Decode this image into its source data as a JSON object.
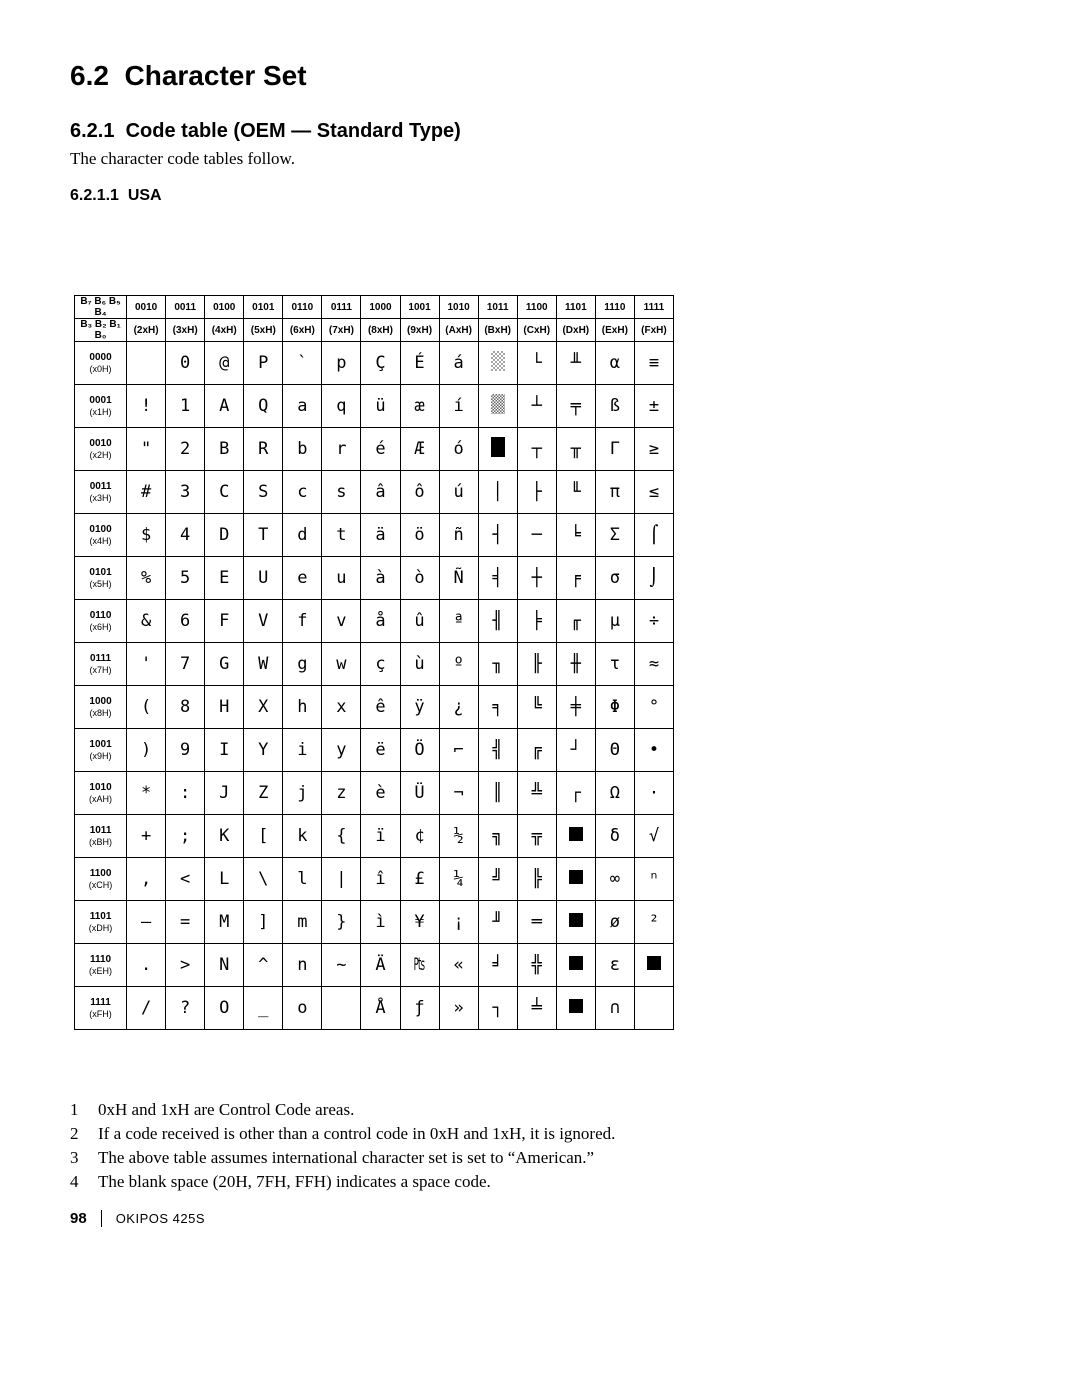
{
  "section_number": "6.2",
  "section_title": "Character Set",
  "subsection_number": "6.2.1",
  "subsection_title": "Code table (OEM — Standard Type)",
  "intro_text": "The character code tables follow.",
  "subsub_number": "6.2.1.1",
  "subsub_title": "USA",
  "table": {
    "top_left_1": "B₇ B₆ B₅ B₄",
    "top_left_2": "B₃ B₂ B₁ B₀",
    "col_bits": [
      "0010",
      "0011",
      "0100",
      "0101",
      "0110",
      "0111",
      "1000",
      "1001",
      "1010",
      "1011",
      "1100",
      "1101",
      "1110",
      "1111"
    ],
    "col_hex": [
      "(2xH)",
      "(3xH)",
      "(4xH)",
      "(5xH)",
      "(6xH)",
      "(7xH)",
      "(8xH)",
      "(9xH)",
      "(AxH)",
      "(BxH)",
      "(CxH)",
      "(DxH)",
      "(ExH)",
      "(FxH)"
    ],
    "row_bits": [
      "0000",
      "0001",
      "0010",
      "0011",
      "0100",
      "0101",
      "0110",
      "0111",
      "1000",
      "1001",
      "1010",
      "1011",
      "1100",
      "1101",
      "1110",
      "1111"
    ],
    "row_hex": [
      "(x0H)",
      "(x1H)",
      "(x2H)",
      "(x3H)",
      "(x4H)",
      "(x5H)",
      "(x6H)",
      "(x7H)",
      "(x8H)",
      "(x9H)",
      "(xAH)",
      "(xBH)",
      "(xCH)",
      "(xDH)",
      "(xEH)",
      "(xFH)"
    ],
    "cells": [
      [
        "",
        "0",
        "@",
        "P",
        "`",
        "p",
        "Ç",
        "É",
        "á",
        "░",
        "└",
        "╨",
        "α",
        "≡"
      ],
      [
        "!",
        "1",
        "A",
        "Q",
        "a",
        "q",
        "ü",
        "æ",
        "í",
        "▒",
        "┴",
        "╤",
        "ß",
        "±"
      ],
      [
        "\"",
        "2",
        "B",
        "R",
        "b",
        "r",
        "é",
        "Æ",
        "ó",
        "▓",
        "┬",
        "╥",
        "Γ",
        "≥"
      ],
      [
        "#",
        "3",
        "C",
        "S",
        "c",
        "s",
        "â",
        "ô",
        "ú",
        "│",
        "├",
        "╙",
        "π",
        "≤"
      ],
      [
        "$",
        "4",
        "D",
        "T",
        "d",
        "t",
        "ä",
        "ö",
        "ñ",
        "┤",
        "─",
        "╘",
        "Σ",
        "⌠"
      ],
      [
        "%",
        "5",
        "E",
        "U",
        "e",
        "u",
        "à",
        "ò",
        "Ñ",
        "╡",
        "┼",
        "╒",
        "σ",
        "⌡"
      ],
      [
        "&",
        "6",
        "F",
        "V",
        "f",
        "v",
        "å",
        "û",
        "ª",
        "╢",
        "╞",
        "╓",
        "μ",
        "÷"
      ],
      [
        "'",
        "7",
        "G",
        "W",
        "g",
        "w",
        "ç",
        "ù",
        "º",
        "╖",
        "╟",
        "╫",
        "τ",
        "≈"
      ],
      [
        "(",
        "8",
        "H",
        "X",
        "h",
        "x",
        "ê",
        "ÿ",
        "¿",
        "╕",
        "╚",
        "╪",
        "Φ",
        "°"
      ],
      [
        ")",
        "9",
        "I",
        "Y",
        "i",
        "y",
        "ë",
        "Ö",
        "⌐",
        "╣",
        "╔",
        "┘",
        "Θ",
        "•"
      ],
      [
        "*",
        ":",
        "J",
        "Z",
        "j",
        "z",
        "è",
        "Ü",
        "¬",
        "║",
        "╩",
        "┌",
        "Ω",
        "·"
      ],
      [
        "+",
        ";",
        "K",
        "[",
        "k",
        "{",
        "ï",
        "¢",
        "½",
        "╗",
        "╦",
        "█",
        "δ",
        "√"
      ],
      [
        ",",
        "<",
        "L",
        "\\",
        "l",
        "|",
        "î",
        "£",
        "¼",
        "╝",
        "╠",
        "▄",
        "∞",
        "ⁿ"
      ],
      [
        "–",
        "=",
        "M",
        "]",
        "m",
        "}",
        "ì",
        "¥",
        "¡",
        "╜",
        "═",
        "▌",
        "ø",
        "²"
      ],
      [
        ".",
        ">",
        "N",
        "^",
        "n",
        "~",
        "Ä",
        "₧",
        "«",
        "╛",
        "╬",
        "▐",
        "ε",
        "■"
      ],
      [
        "/",
        "?",
        "O",
        "_",
        "o",
        "",
        "Å",
        "ƒ",
        "»",
        "┐",
        "╧",
        "▀",
        "∩",
        ""
      ]
    ]
  },
  "notes": [
    "0xH and 1xH are Control Code areas.",
    "If a code received is other than a control code in 0xH and 1xH, it is ignored.",
    "The above table assumes international character set is set to “American.”",
    "The blank space (20H, 7FH, FFH) indicates a space code."
  ],
  "page_number": "98",
  "model": "OKIPOS 425S"
}
